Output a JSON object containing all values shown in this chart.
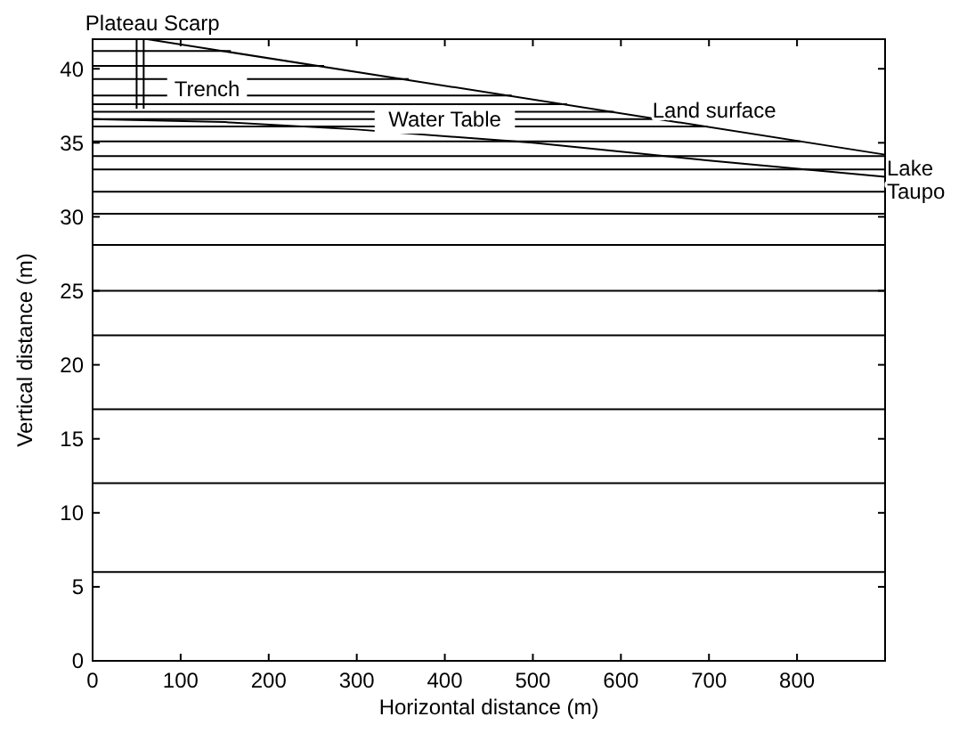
{
  "chart_data": {
    "type": "line",
    "xlabel": "Horizontal distance (m)",
    "ylabel": "Vertical distance (m)",
    "xlim": [
      0,
      900
    ],
    "ylim": [
      0,
      42
    ],
    "xticks": [
      0,
      100,
      200,
      300,
      400,
      500,
      600,
      700,
      800
    ],
    "yticks": [
      0,
      5,
      10,
      15,
      20,
      25,
      30,
      35,
      40
    ],
    "grid": false,
    "marker": "none",
    "line_style": "solid",
    "series": [
      {
        "color": "#000000",
        "x": [
          62,
          900
        ],
        "values": [
          42,
          34.2
        ]
      },
      {
        "color": "#000000",
        "x": [
          0,
          150,
          300,
          500,
          700,
          900
        ],
        "values": [
          36.6,
          36.4,
          35.9,
          35.0,
          33.8,
          32.7
        ]
      },
      {
        "color": "#000000",
        "x": [
          50,
          50
        ],
        "values": [
          42,
          37.3
        ]
      },
      {
        "color": "#000000",
        "x": [
          58,
          58
        ],
        "values": [
          42,
          37.3
        ]
      },
      {
        "color": "#000000",
        "x": [
          0,
          157
        ],
        "values": [
          41.2,
          41.2
        ]
      },
      {
        "color": "#000000",
        "x": [
          0,
          263
        ],
        "values": [
          40.2,
          40.2
        ]
      },
      {
        "color": "#000000",
        "x": [
          0,
          359
        ],
        "values": [
          39.3,
          39.3
        ]
      },
      {
        "color": "#000000",
        "x": [
          0,
          476
        ],
        "values": [
          38.2,
          38.2
        ]
      },
      {
        "color": "#000000",
        "x": [
          0,
          539
        ],
        "values": [
          37.6,
          37.6
        ]
      },
      {
        "color": "#000000",
        "x": [
          0,
          592
        ],
        "values": [
          37.1,
          37.1
        ]
      },
      {
        "color": "#000000",
        "x": [
          0,
          645
        ],
        "values": [
          36.6,
          36.6
        ]
      },
      {
        "color": "#000000",
        "x": [
          0,
          698
        ],
        "values": [
          36.1,
          36.1
        ]
      },
      {
        "color": "#000000",
        "x": [
          0,
          804
        ],
        "values": [
          35.1,
          35.1
        ]
      },
      {
        "color": "#000000",
        "x": [
          0,
          900
        ],
        "values": [
          34.1,
          34.1
        ]
      },
      {
        "color": "#000000",
        "x": [
          0,
          900
        ],
        "values": [
          33.2,
          33.2
        ]
      },
      {
        "color": "#000000",
        "x": [
          0,
          900
        ],
        "values": [
          31.7,
          31.7
        ]
      },
      {
        "color": "#000000",
        "x": [
          0,
          900
        ],
        "values": [
          30.2,
          30.2
        ]
      },
      {
        "color": "#000000",
        "x": [
          0,
          900
        ],
        "values": [
          28.1,
          28.1
        ]
      },
      {
        "color": "#000000",
        "x": [
          0,
          900
        ],
        "values": [
          25,
          25
        ]
      },
      {
        "color": "#000000",
        "x": [
          0,
          900
        ],
        "values": [
          22,
          22
        ]
      },
      {
        "color": "#000000",
        "x": [
          0,
          900
        ],
        "values": [
          17,
          17
        ]
      },
      {
        "color": "#000000",
        "x": [
          0,
          900
        ],
        "values": [
          12,
          12
        ]
      },
      {
        "color": "#000000",
        "x": [
          0,
          900
        ],
        "values": [
          6,
          6
        ]
      }
    ],
    "annotations": [
      {
        "text": "Plateau Scarp",
        "x": 68,
        "y": 42
      },
      {
        "text": "Trench",
        "x": 130,
        "y": 37.6
      },
      {
        "text": "Land surface",
        "x": 706,
        "y": 36.1
      },
      {
        "text": "Water Table",
        "x": 400,
        "y": 35.5
      },
      {
        "text": "Lake Taupo",
        "x": 900,
        "y": 33.3
      }
    ]
  }
}
